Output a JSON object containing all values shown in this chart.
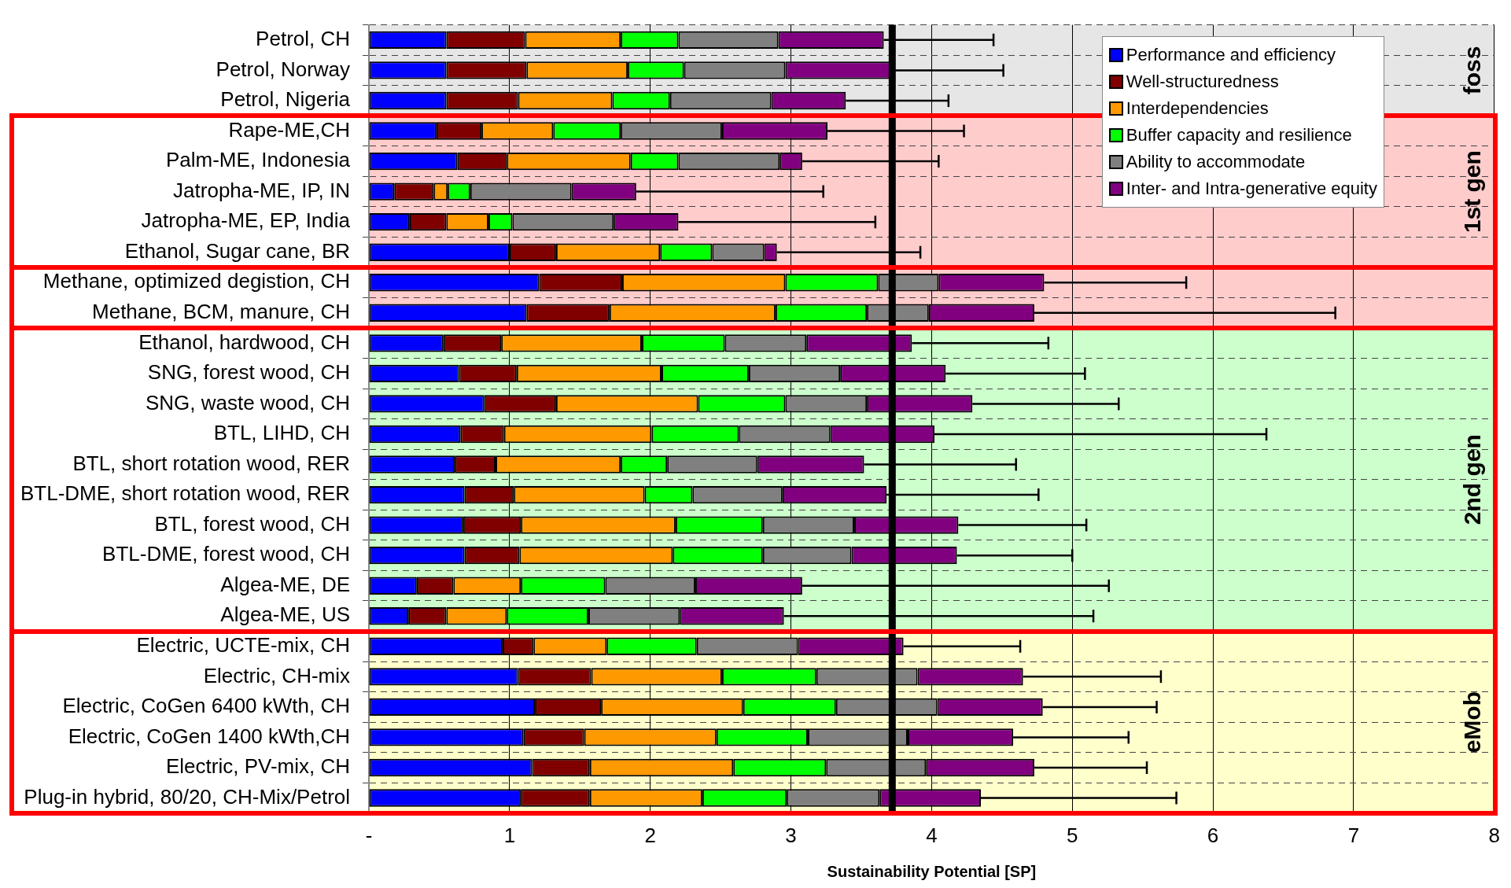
{
  "chart_data": {
    "type": "bar",
    "orientation": "horizontal",
    "stacked": true,
    "xlabel": "Sustainability Potential [SP]",
    "categories": [
      "Petrol, CH",
      "Petrol, Norway",
      "Petrol, Nigeria",
      "Rape-ME,CH",
      "Palm-ME, Indonesia",
      "Jatropha-ME, IP, IN",
      "Jatropha-ME, EP, India",
      "Ethanol, Sugar cane, BR",
      "Methane, optimized degistion, CH",
      "Methane, BCM, manure, CH",
      "Ethanol, hardwood, CH",
      "SNG, forest wood, CH",
      "SNG, waste wood, CH",
      "BTL, LIHD, CH",
      "BTL, short rotation wood, RER",
      "BTL-DME, short rotation wood, RER",
      "BTL, forest wood, CH",
      "BTL-DME, forest wood, CH",
      "Algea-ME, DE",
      "Algea-ME, US",
      "Electric, UCTE-mix, CH",
      "Electric, CH-mix",
      "Electric, CoGen 6400 kWth, CH",
      "Electric, CoGen 1400 kWth,CH",
      "Electric, PV-mix, CH",
      "Plug-in hybrid, 80/20, CH-Mix/Petrol"
    ],
    "series": [
      {
        "name": "Performance and efficiency",
        "color": "#0000ff",
        "values": [
          0.55,
          0.55,
          0.55,
          0.48,
          0.63,
          0.18,
          0.29,
          1.0,
          1.21,
          1.12,
          0.53,
          0.64,
          0.82,
          0.65,
          0.61,
          0.68,
          0.67,
          0.68,
          0.34,
          0.28,
          0.95,
          1.06,
          1.18,
          1.1,
          1.16,
          1.08
        ]
      },
      {
        "name": "Well-structuredness",
        "color": "#800000",
        "values": [
          0.56,
          0.57,
          0.51,
          0.32,
          0.35,
          0.28,
          0.26,
          0.33,
          0.59,
          0.59,
          0.41,
          0.41,
          0.51,
          0.31,
          0.29,
          0.35,
          0.41,
          0.39,
          0.26,
          0.27,
          0.22,
          0.52,
          0.47,
          0.43,
          0.41,
          0.49
        ]
      },
      {
        "name": "Interdependencies",
        "color": "#ff9900",
        "values": [
          0.68,
          0.72,
          0.67,
          0.51,
          0.88,
          0.1,
          0.3,
          0.74,
          1.16,
          1.18,
          1.0,
          1.03,
          1.01,
          1.05,
          0.89,
          0.93,
          1.1,
          1.09,
          0.48,
          0.43,
          0.52,
          0.93,
          1.01,
          0.94,
          1.02,
          0.8
        ]
      },
      {
        "name": "Buffer capacity and resilience",
        "color": "#00ff00",
        "values": [
          0.41,
          0.4,
          0.41,
          0.48,
          0.34,
          0.16,
          0.17,
          0.37,
          0.66,
          0.65,
          0.59,
          0.62,
          0.62,
          0.62,
          0.33,
          0.34,
          0.62,
          0.64,
          0.6,
          0.58,
          0.64,
          0.67,
          0.66,
          0.65,
          0.66,
          0.6
        ]
      },
      {
        "name": "Ability to accommodate",
        "color": "#808080",
        "values": [
          0.71,
          0.72,
          0.72,
          0.72,
          0.72,
          0.72,
          0.72,
          0.37,
          0.43,
          0.44,
          0.58,
          0.65,
          0.58,
          0.65,
          0.64,
          0.64,
          0.65,
          0.63,
          0.64,
          0.65,
          0.72,
          0.72,
          0.72,
          0.71,
          0.71,
          0.66
        ]
      },
      {
        "name": "Inter- and Intra-generative equity",
        "color": "#800080",
        "values": [
          0.75,
          0.77,
          0.53,
          0.75,
          0.16,
          0.46,
          0.46,
          0.09,
          0.75,
          0.75,
          0.75,
          0.75,
          0.75,
          0.74,
          0.76,
          0.74,
          0.74,
          0.75,
          0.76,
          0.74,
          0.75,
          0.75,
          0.75,
          0.75,
          0.77,
          0.72
        ],
        "errors": [
          [
            3.66,
            4.44
          ],
          [
            3.73,
            4.51
          ],
          [
            3.39,
            4.12
          ],
          [
            3.26,
            4.23
          ],
          [
            3.08,
            4.05
          ],
          [
            1.9,
            3.23
          ],
          [
            2.2,
            3.6
          ],
          [
            2.9,
            3.92
          ],
          [
            4.8,
            5.81
          ],
          [
            4.73,
            6.87
          ],
          [
            3.86,
            4.83
          ],
          [
            4.1,
            5.09
          ],
          [
            4.29,
            5.33
          ],
          [
            4.02,
            6.38
          ],
          [
            3.52,
            4.6
          ],
          [
            3.68,
            4.76
          ],
          [
            4.19,
            5.1
          ],
          [
            4.18,
            5.0
          ],
          [
            3.08,
            5.26
          ],
          [
            2.95,
            5.15
          ],
          [
            3.8,
            4.63
          ],
          [
            4.65,
            5.63
          ],
          [
            4.79,
            5.6
          ],
          [
            4.58,
            5.4
          ],
          [
            4.73,
            5.53
          ],
          [
            4.35,
            5.74
          ]
        ]
      }
    ],
    "xlim": [
      0,
      8
    ],
    "xticks": [
      {
        "value": 0,
        "label": "-"
      },
      1,
      2,
      3,
      4,
      5,
      6,
      7,
      8
    ],
    "ref_lines": [
      {
        "axis": "x",
        "value": 3.72,
        "color": "#000000"
      }
    ],
    "bands": [
      {
        "axis": "y",
        "from": "Petrol, CH",
        "to": "Petrol, Nigeria",
        "label": "foss",
        "color": "#e6e6e6"
      },
      {
        "axis": "y",
        "from": "Rape-ME,CH",
        "to": "Ethanol, Sugar cane, BR",
        "label": "1st gen",
        "color": "#ffcccc"
      },
      {
        "axis": "y",
        "from": "Methane, optimized degistion, CH",
        "to": "Methane, BCM, manure, CH",
        "color": "#ffcccc"
      },
      {
        "axis": "y",
        "from": "Ethanol, hardwood, CH",
        "to": "Algea-ME, US",
        "label": "2nd gen",
        "color": "#ccffcc"
      },
      {
        "axis": "y",
        "from": "Electric, UCTE-mix, CH",
        "to": "Plug-in hybrid, 80/20, CH-Mix/Petrol",
        "label": "eMob",
        "color": "#ffffcc"
      }
    ],
    "grid": true,
    "legend": "top right"
  }
}
